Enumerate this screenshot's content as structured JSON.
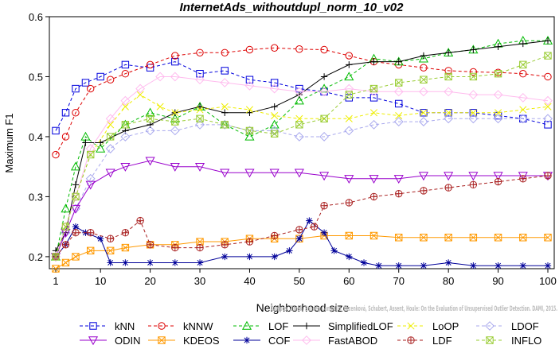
{
  "chart_data": {
    "type": "line",
    "title": "InternetAds_withoutdupl_norm_10_v02",
    "xlabel": "Neighborhood size",
    "ylabel": "Maximum F1",
    "xlim": [
      1,
      100
    ],
    "ylim": [
      0.18,
      0.6
    ],
    "xticks": [
      1,
      10,
      20,
      30,
      40,
      50,
      60,
      70,
      80,
      90,
      100
    ],
    "yticks": [
      0.2,
      0.3,
      0.4,
      0.5,
      0.6
    ],
    "grid": false,
    "legend_position": "bottom",
    "watermark": "Campos, Zimek, Sander, Campello, Micenková, Schubert, Assent, Houle: On the Evaluation of Unsupervised Outlier Detection. DAMI, 2015.",
    "series": [
      {
        "name": "kNN",
        "color": "#0000dd",
        "marker": "square",
        "dash": "4,3",
        "x": [
          1,
          3,
          5,
          7,
          10,
          15,
          20,
          25,
          30,
          35,
          40,
          45,
          50,
          55,
          60,
          65,
          70,
          75,
          80,
          85,
          90,
          95,
          100
        ],
        "y": [
          0.41,
          0.44,
          0.48,
          0.49,
          0.5,
          0.52,
          0.515,
          0.525,
          0.505,
          0.51,
          0.495,
          0.49,
          0.48,
          0.475,
          0.465,
          0.465,
          0.455,
          0.44,
          0.44,
          0.44,
          0.435,
          0.43,
          0.42
        ]
      },
      {
        "name": "kNNW",
        "color": "#dd0000",
        "marker": "circle",
        "dash": "4,3",
        "x": [
          1,
          3,
          5,
          8,
          12,
          15,
          20,
          25,
          30,
          35,
          40,
          45,
          50,
          55,
          60,
          65,
          70,
          75,
          80,
          85,
          90,
          95,
          100
        ],
        "y": [
          0.37,
          0.4,
          0.44,
          0.48,
          0.495,
          0.505,
          0.52,
          0.535,
          0.54,
          0.54,
          0.545,
          0.548,
          0.546,
          0.545,
          0.535,
          0.525,
          0.52,
          0.515,
          0.51,
          0.508,
          0.507,
          0.505,
          0.5
        ]
      },
      {
        "name": "LOF",
        "color": "#00bb00",
        "marker": "triangle",
        "dash": "4,3",
        "x": [
          1,
          3,
          5,
          7,
          10,
          15,
          20,
          25,
          30,
          35,
          40,
          45,
          50,
          55,
          60,
          65,
          70,
          75,
          80,
          85,
          90,
          95,
          100
        ],
        "y": [
          0.2,
          0.28,
          0.35,
          0.4,
          0.38,
          0.42,
          0.44,
          0.43,
          0.45,
          0.42,
          0.4,
          0.42,
          0.46,
          0.48,
          0.5,
          0.53,
          0.525,
          0.53,
          0.54,
          0.545,
          0.555,
          0.56,
          0.56
        ]
      },
      {
        "name": "SimplifiedLOF",
        "color": "#000000",
        "marker": "plus",
        "dash": "none",
        "x": [
          1,
          3,
          5,
          7,
          10,
          15,
          20,
          25,
          30,
          35,
          40,
          45,
          50,
          55,
          60,
          65,
          70,
          75,
          80,
          85,
          90,
          95,
          100
        ],
        "y": [
          0.21,
          0.24,
          0.32,
          0.39,
          0.39,
          0.41,
          0.42,
          0.44,
          0.45,
          0.44,
          0.44,
          0.45,
          0.47,
          0.5,
          0.52,
          0.525,
          0.525,
          0.535,
          0.54,
          0.545,
          0.55,
          0.555,
          0.56
        ]
      },
      {
        "name": "LoOP",
        "color": "#eeee00",
        "marker": "x",
        "dash": "4,3",
        "x": [
          1,
          3,
          5,
          8,
          12,
          15,
          18,
          22,
          25,
          30,
          35,
          40,
          45,
          50,
          55,
          60,
          65,
          70,
          75,
          80,
          85,
          90,
          95,
          100
        ],
        "y": [
          0.2,
          0.25,
          0.3,
          0.37,
          0.42,
          0.45,
          0.47,
          0.45,
          0.44,
          0.445,
          0.45,
          0.445,
          0.435,
          0.43,
          0.43,
          0.43,
          0.44,
          0.435,
          0.44,
          0.44,
          0.44,
          0.44,
          0.445,
          0.45
        ]
      },
      {
        "name": "LDOF",
        "color": "#aaaaee",
        "marker": "diamond",
        "dash": "4,3",
        "x": [
          1,
          3,
          5,
          8,
          12,
          15,
          20,
          25,
          30,
          35,
          40,
          45,
          50,
          55,
          60,
          65,
          70,
          75,
          80,
          85,
          90,
          95,
          100
        ],
        "y": [
          0.2,
          0.24,
          0.28,
          0.33,
          0.38,
          0.4,
          0.41,
          0.41,
          0.42,
          0.42,
          0.41,
          0.41,
          0.4,
          0.4,
          0.41,
          0.42,
          0.425,
          0.425,
          0.43,
          0.43,
          0.43,
          0.43,
          0.43
        ]
      },
      {
        "name": "ODIN",
        "color": "#9900cc",
        "marker": "triangle-down",
        "dash": "none",
        "x": [
          1,
          3,
          5,
          8,
          12,
          15,
          20,
          25,
          30,
          35,
          40,
          45,
          50,
          55,
          60,
          65,
          70,
          75,
          80,
          85,
          90,
          95,
          100
        ],
        "y": [
          0.2,
          0.24,
          0.28,
          0.32,
          0.34,
          0.35,
          0.36,
          0.35,
          0.35,
          0.34,
          0.34,
          0.34,
          0.34,
          0.335,
          0.33,
          0.33,
          0.33,
          0.335,
          0.335,
          0.335,
          0.335,
          0.335,
          0.335
        ]
      },
      {
        "name": "KDEOS",
        "color": "#ff9900",
        "marker": "square-x",
        "dash": "none",
        "x": [
          1,
          3,
          5,
          8,
          12,
          15,
          20,
          25,
          30,
          35,
          40,
          45,
          50,
          55,
          60,
          65,
          70,
          75,
          80,
          85,
          90,
          95,
          100
        ],
        "y": [
          0.18,
          0.19,
          0.2,
          0.21,
          0.21,
          0.215,
          0.22,
          0.22,
          0.225,
          0.225,
          0.23,
          0.23,
          0.23,
          0.235,
          0.235,
          0.235,
          0.232,
          0.232,
          0.232,
          0.232,
          0.232,
          0.232,
          0.232
        ]
      },
      {
        "name": "COF",
        "color": "#000099",
        "marker": "asterisk",
        "dash": "none",
        "x": [
          1,
          3,
          5,
          7,
          10,
          12,
          15,
          20,
          25,
          30,
          35,
          40,
          45,
          48,
          50,
          52,
          55,
          57,
          60,
          63,
          66,
          70,
          75,
          80,
          85,
          90,
          95,
          100
        ],
        "y": [
          0.2,
          0.22,
          0.25,
          0.24,
          0.23,
          0.19,
          0.19,
          0.19,
          0.19,
          0.19,
          0.2,
          0.2,
          0.2,
          0.21,
          0.23,
          0.26,
          0.24,
          0.21,
          0.2,
          0.19,
          0.185,
          0.185,
          0.185,
          0.19,
          0.185,
          0.185,
          0.185,
          0.185
        ]
      },
      {
        "name": "FastABOD",
        "color": "#ffbbee",
        "marker": "diamond",
        "dash": "none",
        "x": [
          1,
          3,
          5,
          8,
          12,
          15,
          18,
          22,
          25,
          30,
          35,
          40,
          45,
          50,
          55,
          60,
          65,
          70,
          75,
          80,
          85,
          90,
          95,
          100
        ],
        "y": [
          0.2,
          0.25,
          0.3,
          0.38,
          0.43,
          0.46,
          0.48,
          0.5,
          0.5,
          0.495,
          0.49,
          0.485,
          0.48,
          0.475,
          0.475,
          0.48,
          0.475,
          0.475,
          0.475,
          0.475,
          0.47,
          0.47,
          0.465,
          0.46
        ]
      },
      {
        "name": "LDF",
        "color": "#aa2222",
        "marker": "circle-plus",
        "dash": "4,3",
        "x": [
          1,
          3,
          5,
          8,
          12,
          15,
          18,
          20,
          25,
          30,
          35,
          40,
          45,
          50,
          53,
          55,
          60,
          65,
          70,
          75,
          80,
          85,
          90,
          95,
          100
        ],
        "y": [
          0.2,
          0.22,
          0.24,
          0.24,
          0.23,
          0.24,
          0.26,
          0.22,
          0.215,
          0.215,
          0.22,
          0.225,
          0.235,
          0.245,
          0.25,
          0.285,
          0.29,
          0.3,
          0.305,
          0.31,
          0.315,
          0.32,
          0.325,
          0.33,
          0.335
        ]
      },
      {
        "name": "INFLO",
        "color": "#99cc33",
        "marker": "square-x",
        "dash": "4,3",
        "x": [
          1,
          3,
          5,
          8,
          12,
          15,
          20,
          25,
          30,
          35,
          40,
          45,
          50,
          55,
          60,
          65,
          70,
          75,
          80,
          85,
          90,
          95,
          100
        ],
        "y": [
          0.2,
          0.25,
          0.3,
          0.37,
          0.4,
          0.42,
          0.43,
          0.425,
          0.43,
          0.42,
          0.41,
          0.405,
          0.42,
          0.43,
          0.47,
          0.48,
          0.49,
          0.495,
          0.5,
          0.5,
          0.505,
          0.52,
          0.535
        ]
      }
    ]
  }
}
